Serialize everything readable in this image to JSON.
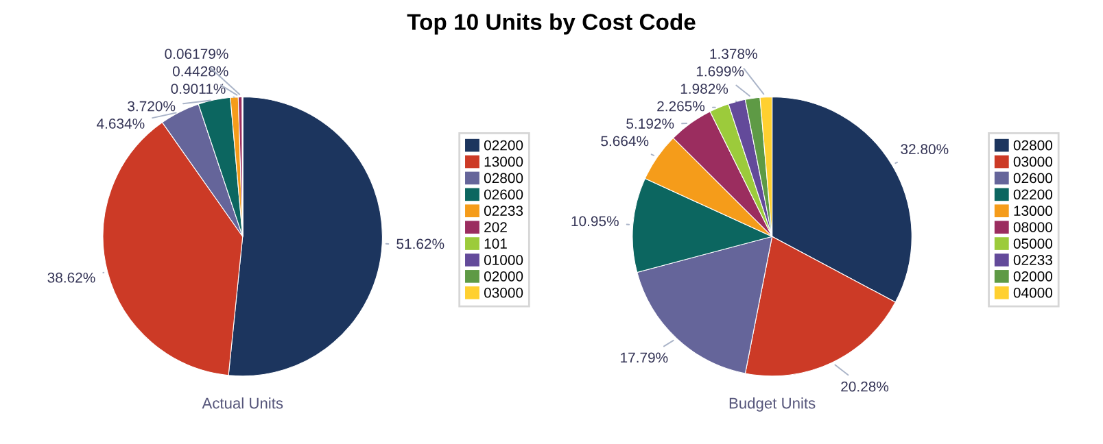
{
  "chart_data": [
    {
      "type": "pie",
      "title": "Top 10 Units by Cost Code",
      "xlabel": "Actual Units",
      "legend": "right",
      "categories": [
        "02200",
        "13000",
        "02800",
        "02600",
        "02233",
        "202",
        "101",
        "01000",
        "02000",
        "03000"
      ],
      "values": [
        51.62,
        38.62,
        4.634,
        3.72,
        0.9011,
        0.4428,
        0.06179,
        0,
        0,
        0
      ],
      "value_labels": [
        "51.62%",
        "38.62%",
        "4.634%",
        "3.720%",
        "0.9011%",
        "0.4428%",
        "0.06179%",
        null,
        null,
        null
      ],
      "colors": [
        "#1c355e",
        "#cc3a26",
        "#65659a",
        "#0c6660",
        "#f59c1a",
        "#9b2d5f",
        "#9ccb3b",
        "#634a9a",
        "#5e9a45",
        "#ffd030"
      ]
    },
    {
      "type": "pie",
      "xlabel": "Budget Units",
      "legend": "right",
      "categories": [
        "02800",
        "03000",
        "02600",
        "02200",
        "13000",
        "08000",
        "05000",
        "02233",
        "02000",
        "04000"
      ],
      "values": [
        32.8,
        20.28,
        17.79,
        10.95,
        5.664,
        5.192,
        2.265,
        1.982,
        1.699,
        1.378
      ],
      "value_labels": [
        "32.80%",
        "20.28%",
        "17.79%",
        "10.95%",
        "5.664%",
        "5.192%",
        "2.265%",
        "1.982%",
        "1.699%",
        "1.378%"
      ],
      "colors": [
        "#1c355e",
        "#cc3a26",
        "#65659a",
        "#0c6660",
        "#f59c1a",
        "#9b2d5f",
        "#9ccb3b",
        "#634a9a",
        "#5e9a45",
        "#ffd030"
      ]
    }
  ]
}
